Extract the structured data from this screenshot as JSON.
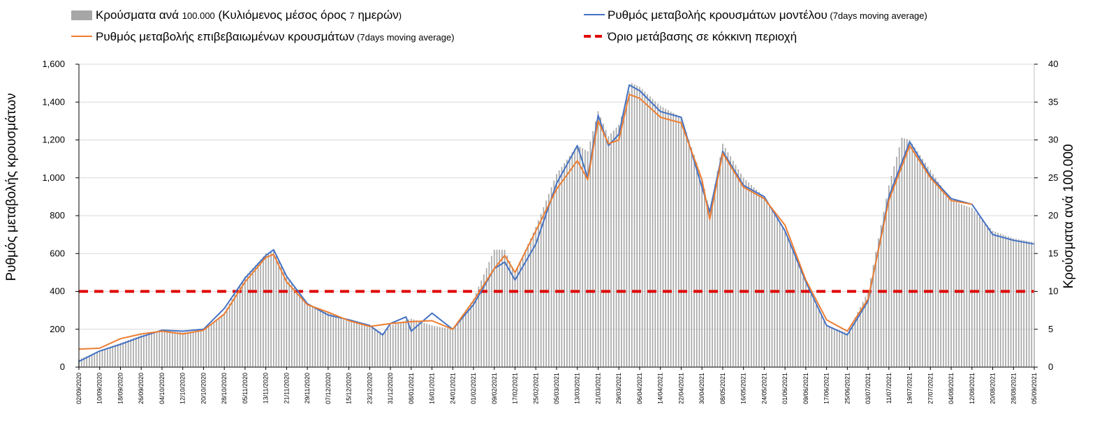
{
  "chart_data": {
    "type": "bar+line",
    "title": "",
    "legend": {
      "placement": "top",
      "items": [
        {
          "key": "bars",
          "label_main": "Κρούσματα ανά ",
          "label_num": "100.000",
          "label_paren_open": " (Κυλιόμενος μέσος όρος ",
          "label_num2": "7",
          "label_rest": " ημερών",
          "label_close": ")",
          "color": "#a6a6a6",
          "symbol": "bar"
        },
        {
          "key": "model",
          "label_main": "Ρυθμός μεταβολής κρουσμάτων μοντέλου",
          "label_small": " (7days moving average)",
          "color": "#4472c4",
          "symbol": "line"
        },
        {
          "key": "confirmed",
          "label_main": "Ρυθμός μεταβολής επιβεβαιωμένων κρουσμάτων",
          "label_small": " (7days moving average)",
          "color": "#ed7d31",
          "symbol": "line"
        },
        {
          "key": "threshold",
          "label_main": "Όριο μετάβασης σε κόκκινη περιοχή",
          "color": "#e00000",
          "symbol": "dashed"
        }
      ]
    },
    "y_left": {
      "label": "Ρυθμός μεταβολής κρουσμάτων",
      "min": 0,
      "max": 1600,
      "ticks": [
        "0",
        "200",
        "400",
        "600",
        "800",
        "1,000",
        "1,200",
        "1,400",
        "1,600"
      ]
    },
    "y_right": {
      "label": "Κρούσματα ανά 100.000",
      "min": 0,
      "max": 40,
      "ticks": [
        "0",
        "5",
        "10",
        "15",
        "20",
        "25",
        "30",
        "35",
        "40"
      ]
    },
    "x": {
      "start": "2020-09-02",
      "end": "2021-09-05",
      "tick_labels": [
        "02/09/2020",
        "10/09/2020",
        "18/09/2020",
        "26/09/2020",
        "04/10/2020",
        "12/10/2020",
        "20/10/2020",
        "28/10/2020",
        "05/11/2020",
        "13/11/2020",
        "21/11/2020",
        "29/11/2020",
        "07/12/2020",
        "15/12/2020",
        "23/12/2020",
        "31/12/2020",
        "08/01/2021",
        "16/01/2021",
        "24/01/2021",
        "01/02/2021",
        "09/02/2021",
        "17/02/2021",
        "25/02/2021",
        "05/03/2021",
        "13/03/2021",
        "21/03/2021",
        "29/03/2021",
        "06/04/2021",
        "14/04/2021",
        "22/04/2021",
        "30/04/2021",
        "08/05/2021",
        "16/05/2021",
        "24/05/2021",
        "01/06/2021",
        "09/06/2021",
        "17/06/2021",
        "25/06/2021",
        "03/07/2021",
        "11/07/2021",
        "19/07/2021",
        "27/07/2021",
        "04/08/2021",
        "12/08/2021",
        "20/08/2021",
        "28/08/2021",
        "05/09/2021"
      ]
    },
    "grid": true,
    "threshold_value": 400,
    "series": [
      {
        "name": "Κρούσματα ανά 100.000 (Κυλιόμενος μέσος όρος 7 ημερών)",
        "key": "bars",
        "axis": "right",
        "type": "bar",
        "points": [
          [
            "2020-09-02",
            1.0
          ],
          [
            "2020-09-10",
            2.2
          ],
          [
            "2020-09-18",
            3.2
          ],
          [
            "2020-09-26",
            4.2
          ],
          [
            "2020-10-04",
            4.8
          ],
          [
            "2020-10-12",
            4.6
          ],
          [
            "2020-10-20",
            4.8
          ],
          [
            "2020-10-28",
            7.2
          ],
          [
            "2020-11-05",
            12.0
          ],
          [
            "2020-11-10",
            13.8
          ],
          [
            "2020-11-13",
            15.0
          ],
          [
            "2020-11-16",
            15.3
          ],
          [
            "2020-11-21",
            12.0
          ],
          [
            "2020-11-29",
            8.2
          ],
          [
            "2020-12-07",
            7.2
          ],
          [
            "2020-12-15",
            6.0
          ],
          [
            "2020-12-23",
            5.5
          ],
          [
            "2020-12-28",
            4.5
          ],
          [
            "2020-12-31",
            5.5
          ],
          [
            "2021-01-08",
            6.4
          ],
          [
            "2021-01-16",
            5.5
          ],
          [
            "2021-01-24",
            5.0
          ],
          [
            "2021-02-01",
            9.0
          ],
          [
            "2021-02-09",
            15.5
          ],
          [
            "2021-02-13",
            15.5
          ],
          [
            "2021-02-17",
            12.5
          ],
          [
            "2021-02-25",
            18.5
          ],
          [
            "2021-03-05",
            25.5
          ],
          [
            "2021-03-13",
            29.3
          ],
          [
            "2021-03-17",
            28.5
          ],
          [
            "2021-03-21",
            33.8
          ],
          [
            "2021-03-25",
            30.5
          ],
          [
            "2021-03-29",
            32.0
          ],
          [
            "2021-04-03",
            37.5
          ],
          [
            "2021-04-06",
            37.0
          ],
          [
            "2021-04-14",
            34.5
          ],
          [
            "2021-04-22",
            33.0
          ],
          [
            "2021-04-30",
            25.0
          ],
          [
            "2021-05-03",
            20.5
          ],
          [
            "2021-05-08",
            29.5
          ],
          [
            "2021-05-16",
            25.0
          ],
          [
            "2021-05-24",
            22.5
          ],
          [
            "2021-06-01",
            18.0
          ],
          [
            "2021-06-09",
            11.0
          ],
          [
            "2021-06-17",
            5.5
          ],
          [
            "2021-06-25",
            4.5
          ],
          [
            "2021-07-03",
            10.0
          ],
          [
            "2021-07-11",
            24.0
          ],
          [
            "2021-07-16",
            30.3
          ],
          [
            "2021-07-19",
            30.0
          ],
          [
            "2021-07-27",
            26.0
          ],
          [
            "2021-08-04",
            22.0
          ],
          [
            "2021-08-12",
            21.0
          ],
          [
            "2021-08-20",
            18.0
          ],
          [
            "2021-08-28",
            17.0
          ],
          [
            "2021-09-05",
            16.5
          ]
        ]
      },
      {
        "name": "Ρυθμός μεταβολής κρουσμάτων μοντέλου (7days moving average)",
        "key": "model",
        "axis": "left",
        "type": "line",
        "points": [
          [
            "2020-09-02",
            30
          ],
          [
            "2020-09-10",
            85
          ],
          [
            "2020-09-18",
            120
          ],
          [
            "2020-09-26",
            160
          ],
          [
            "2020-10-04",
            195
          ],
          [
            "2020-10-12",
            190
          ],
          [
            "2020-10-20",
            200
          ],
          [
            "2020-10-28",
            310
          ],
          [
            "2020-11-05",
            470
          ],
          [
            "2020-11-13",
            590
          ],
          [
            "2020-11-16",
            620
          ],
          [
            "2020-11-21",
            480
          ],
          [
            "2020-11-29",
            335
          ],
          [
            "2020-12-07",
            275
          ],
          [
            "2020-12-15",
            250
          ],
          [
            "2020-12-23",
            220
          ],
          [
            "2020-12-28",
            170
          ],
          [
            "2020-12-31",
            230
          ],
          [
            "2021-01-06",
            265
          ],
          [
            "2021-01-08",
            190
          ],
          [
            "2021-01-16",
            285
          ],
          [
            "2021-01-24",
            200
          ],
          [
            "2021-02-01",
            330
          ],
          [
            "2021-02-09",
            520
          ],
          [
            "2021-02-13",
            555
          ],
          [
            "2021-02-17",
            460
          ],
          [
            "2021-02-25",
            650
          ],
          [
            "2021-03-05",
            970
          ],
          [
            "2021-03-13",
            1170
          ],
          [
            "2021-03-17",
            1000
          ],
          [
            "2021-03-21",
            1330
          ],
          [
            "2021-03-25",
            1170
          ],
          [
            "2021-03-29",
            1230
          ],
          [
            "2021-04-02",
            1490
          ],
          [
            "2021-04-06",
            1460
          ],
          [
            "2021-04-14",
            1350
          ],
          [
            "2021-04-22",
            1320
          ],
          [
            "2021-04-30",
            950
          ],
          [
            "2021-05-03",
            820
          ],
          [
            "2021-05-08",
            1140
          ],
          [
            "2021-05-16",
            960
          ],
          [
            "2021-05-24",
            900
          ],
          [
            "2021-06-01",
            720
          ],
          [
            "2021-06-09",
            450
          ],
          [
            "2021-06-17",
            220
          ],
          [
            "2021-06-25",
            170
          ],
          [
            "2021-07-03",
            350
          ],
          [
            "2021-07-11",
            900
          ],
          [
            "2021-07-19",
            1190
          ],
          [
            "2021-07-27",
            1010
          ],
          [
            "2021-08-04",
            890
          ],
          [
            "2021-08-12",
            860
          ],
          [
            "2021-08-20",
            700
          ],
          [
            "2021-08-28",
            670
          ],
          [
            "2021-09-05",
            650
          ]
        ]
      },
      {
        "name": "Ρυθμός μεταβολής επιβεβαιωμένων κρουσμάτων (7days moving average)",
        "key": "confirmed",
        "axis": "left",
        "type": "line",
        "points": [
          [
            "2020-09-02",
            95
          ],
          [
            "2020-09-10",
            100
          ],
          [
            "2020-09-18",
            150
          ],
          [
            "2020-09-26",
            175
          ],
          [
            "2020-10-04",
            190
          ],
          [
            "2020-10-12",
            175
          ],
          [
            "2020-10-20",
            195
          ],
          [
            "2020-10-28",
            280
          ],
          [
            "2020-11-05",
            450
          ],
          [
            "2020-11-13",
            580
          ],
          [
            "2020-11-16",
            595
          ],
          [
            "2020-11-21",
            450
          ],
          [
            "2020-11-29",
            330
          ],
          [
            "2020-12-07",
            290
          ],
          [
            "2020-12-15",
            245
          ],
          [
            "2020-12-23",
            215
          ],
          [
            "2020-12-31",
            230
          ],
          [
            "2021-01-08",
            240
          ],
          [
            "2021-01-16",
            245
          ],
          [
            "2021-01-24",
            200
          ],
          [
            "2021-02-01",
            350
          ],
          [
            "2021-02-09",
            520
          ],
          [
            "2021-02-13",
            590
          ],
          [
            "2021-02-17",
            500
          ],
          [
            "2021-02-25",
            720
          ],
          [
            "2021-03-05",
            940
          ],
          [
            "2021-03-13",
            1090
          ],
          [
            "2021-03-17",
            990
          ],
          [
            "2021-03-21",
            1300
          ],
          [
            "2021-03-25",
            1180
          ],
          [
            "2021-03-29",
            1200
          ],
          [
            "2021-04-02",
            1440
          ],
          [
            "2021-04-06",
            1420
          ],
          [
            "2021-04-14",
            1320
          ],
          [
            "2021-04-22",
            1290
          ],
          [
            "2021-04-30",
            990
          ],
          [
            "2021-05-03",
            780
          ],
          [
            "2021-05-08",
            1130
          ],
          [
            "2021-05-16",
            950
          ],
          [
            "2021-05-24",
            890
          ],
          [
            "2021-06-01",
            750
          ],
          [
            "2021-06-09",
            460
          ],
          [
            "2021-06-17",
            250
          ],
          [
            "2021-06-25",
            190
          ],
          [
            "2021-07-03",
            360
          ],
          [
            "2021-07-11",
            880
          ],
          [
            "2021-07-19",
            1170
          ],
          [
            "2021-07-27",
            1000
          ],
          [
            "2021-08-04",
            880
          ],
          [
            "2021-08-12",
            860
          ]
        ]
      }
    ]
  }
}
